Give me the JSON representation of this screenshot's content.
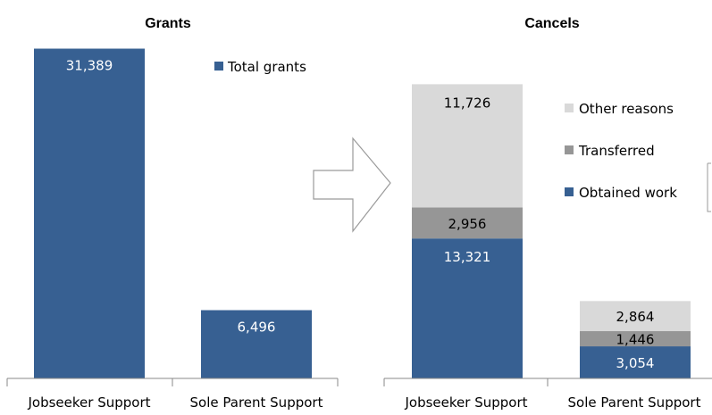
{
  "chart_data": [
    {
      "type": "bar",
      "title": "Grants",
      "categories": [
        "Jobseeker Support",
        "Sole Parent Support"
      ],
      "series": [
        {
          "name": "Total grants",
          "values": [
            31389,
            6496
          ],
          "labels": [
            "31,389",
            "6,496"
          ],
          "color": "#376092"
        }
      ],
      "ylim": [
        0,
        35000
      ],
      "legend": "top-right",
      "grid": false
    },
    {
      "type": "bar",
      "stacked": true,
      "title": "Cancels",
      "categories": [
        "Jobseeker Support",
        "Sole Parent Support"
      ],
      "series": [
        {
          "name": "Obtained work",
          "values": [
            13321,
            3054
          ],
          "labels": [
            "13,321",
            "3,054"
          ],
          "color": "#376092",
          "label_color": "#ffffff"
        },
        {
          "name": "Transferred",
          "values": [
            2956,
            1446
          ],
          "labels": [
            "2,956",
            "1,446"
          ],
          "color": "#969696",
          "label_color": "#000000"
        },
        {
          "name": "Other reasons",
          "values": [
            11726,
            2864
          ],
          "labels": [
            "11,726",
            "2,864"
          ],
          "color": "#d9d9d9",
          "label_color": "#000000"
        }
      ],
      "ylim": [
        0,
        35000
      ],
      "legend": "right",
      "grid": false
    }
  ],
  "arrow_icon": "right-arrow-outline-icon"
}
